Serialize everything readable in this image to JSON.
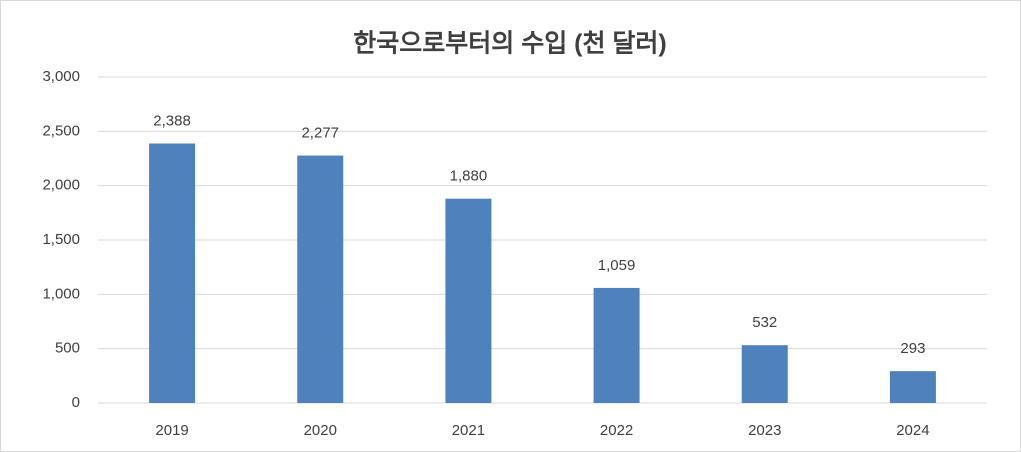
{
  "chart_data": {
    "type": "bar",
    "title": "한국으로부터의 수입 (천 달러)",
    "categories": [
      "2019",
      "2020",
      "2021",
      "2022",
      "2023",
      "2024"
    ],
    "values": [
      2388,
      2277,
      1880,
      1059,
      532,
      293
    ],
    "value_labels": [
      "2,388",
      "2,277",
      "1,880",
      "1,059",
      "532",
      "293"
    ],
    "color": "#4f81bd",
    "ylim": [
      0,
      3000
    ],
    "yticks": [
      0,
      500,
      {
        "value": 1000,
        "label": "1,000"
      },
      {
        "value": 1500,
        "label": "1,500"
      },
      {
        "value": 2000,
        "label": "2,000"
      },
      {
        "value": 2500,
        "label": "2,500"
      },
      {
        "value": 3000,
        "label": "3,000"
      }
    ],
    "grid": true
  }
}
